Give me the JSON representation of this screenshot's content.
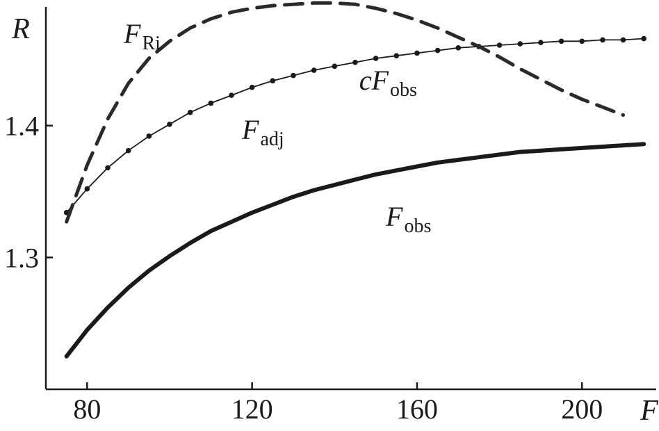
{
  "chart_data": {
    "type": "line",
    "title": "",
    "xlabel": "F",
    "ylabel": "R",
    "xlim": [
      70,
      218
    ],
    "ylim": [
      1.2,
      1.49
    ],
    "xticks": [
      80,
      120,
      160,
      200
    ],
    "yticks": [
      1.3,
      1.4
    ],
    "xtick_labels": [
      "80",
      "120",
      "160",
      "200"
    ],
    "ytick_labels": [
      "1.3",
      "1.4"
    ],
    "grid": false,
    "series": [
      {
        "name": "F_obs",
        "label": {
          "main": "F",
          "sub": "obs",
          "prefix": ""
        },
        "style": "thick-solid",
        "x": [
          75,
          80,
          85,
          90,
          95,
          100,
          105,
          110,
          115,
          120,
          125,
          130,
          135,
          140,
          145,
          150,
          155,
          160,
          165,
          170,
          175,
          180,
          185,
          190,
          195,
          200,
          205,
          210,
          215
        ],
        "y": [
          1.225,
          1.245,
          1.262,
          1.277,
          1.29,
          1.301,
          1.311,
          1.32,
          1.327,
          1.334,
          1.34,
          1.346,
          1.351,
          1.355,
          1.359,
          1.363,
          1.366,
          1.369,
          1.372,
          1.374,
          1.376,
          1.378,
          1.38,
          1.381,
          1.382,
          1.383,
          1.384,
          1.385,
          1.386
        ]
      },
      {
        "name": "F_adj",
        "label": {
          "main": "F",
          "sub": "adj",
          "prefix": ""
        },
        "style": "thin-solid-dots",
        "x": [
          75,
          80,
          85,
          90,
          95,
          100,
          105,
          110,
          115,
          120,
          125,
          130,
          135,
          140,
          145,
          150,
          155,
          160,
          165,
          170,
          175,
          180,
          185,
          190,
          195,
          200,
          205,
          210,
          215
        ],
        "y": [
          1.334,
          1.352,
          1.368,
          1.381,
          1.392,
          1.401,
          1.41,
          1.417,
          1.423,
          1.429,
          1.434,
          1.438,
          1.442,
          1.445,
          1.448,
          1.451,
          1.453,
          1.455,
          1.457,
          1.459,
          1.46,
          1.461,
          1.462,
          1.463,
          1.464,
          1.464,
          1.465,
          1.465,
          1.466
        ]
      },
      {
        "name": "F_Ri",
        "label": {
          "main": "F",
          "sub": "Ri",
          "prefix": ""
        },
        "style": "dashed",
        "x": [
          75,
          80,
          85,
          90,
          95,
          100,
          105,
          110,
          115,
          120,
          125,
          130,
          135,
          140,
          145,
          150,
          155,
          160,
          165,
          170,
          175,
          180,
          185,
          190,
          195,
          200,
          205,
          210
        ],
        "y": [
          1.327,
          1.37,
          1.405,
          1.432,
          1.451,
          1.464,
          1.474,
          1.481,
          1.486,
          1.489,
          1.491,
          1.492,
          1.493,
          1.493,
          1.492,
          1.489,
          1.485,
          1.48,
          1.474,
          1.467,
          1.46,
          1.452,
          1.443,
          1.435,
          1.427,
          1.42,
          1.414,
          1.408
        ]
      }
    ],
    "annotations": [
      {
        "text_prefix": "c",
        "main": "F",
        "sub": "obs",
        "x": 162,
        "y": 1.414,
        "refers_to": "F_adj"
      }
    ]
  }
}
